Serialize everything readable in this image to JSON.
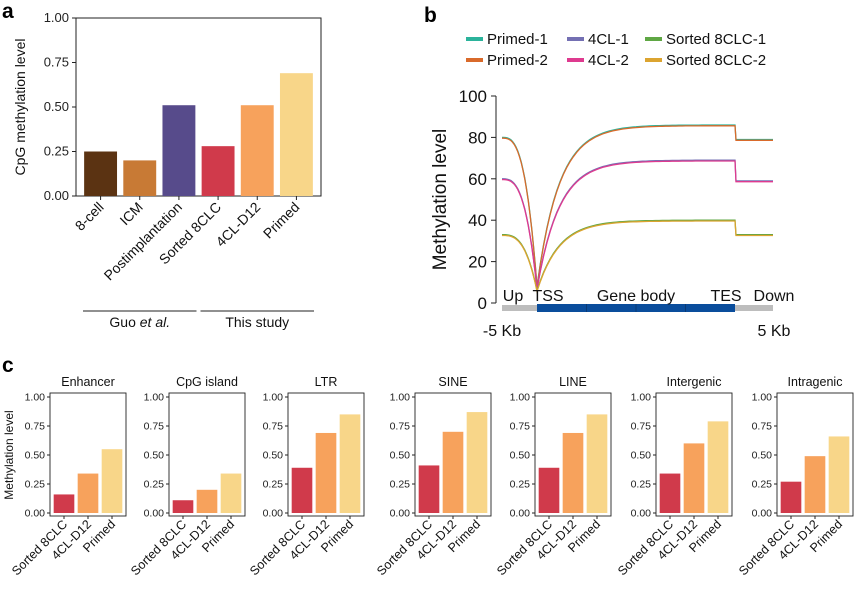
{
  "panels": {
    "a": {
      "letter": "a"
    },
    "b": {
      "letter": "b"
    },
    "c": {
      "letter": "c"
    }
  },
  "chart_data": [
    {
      "id": "a",
      "type": "bar",
      "ylabel": "CpG methylation level",
      "ylim": [
        0,
        1
      ],
      "yticks": [
        "0.00",
        "0.25",
        "0.50",
        "0.75",
        "1.00"
      ],
      "categories": [
        "8-cell",
        "ICM",
        "Postimplantation",
        "Sorted 8CLC",
        "4CL-D12",
        "Primed"
      ],
      "values": [
        0.25,
        0.2,
        0.51,
        0.28,
        0.51,
        0.69
      ],
      "colors": [
        "#5b3312",
        "#c87a35",
        "#574b8b",
        "#d03a4b",
        "#f7a25c",
        "#f8d689"
      ],
      "groups": [
        {
          "label_pre": "Guo ",
          "label_em": "et al.",
          "label_post": "",
          "span": [
            0,
            2
          ]
        },
        {
          "label_pre": "This study",
          "label_em": "",
          "label_post": "",
          "span": [
            3,
            5
          ]
        }
      ]
    },
    {
      "id": "b",
      "type": "line",
      "ylabel": "Methylation level",
      "ylim": [
        0,
        100
      ],
      "yticks": [
        "0",
        "20",
        "40",
        "60",
        "80",
        "100"
      ],
      "legend": [
        {
          "name": "Primed-1",
          "color": "#2bb39b"
        },
        {
          "name": "4CL-1",
          "color": "#7470b3"
        },
        {
          "name": "Sorted 8CLC-1",
          "color": "#5fa744"
        },
        {
          "name": "Primed-2",
          "color": "#d96a2b"
        },
        {
          "name": "4CL-2",
          "color": "#de3a8f"
        },
        {
          "name": "Sorted 8CLC-2",
          "color": "#dca430"
        }
      ],
      "region_labels": [
        "Up",
        "TSS",
        "Gene body",
        "TES",
        "Down"
      ],
      "x_end_labels": [
        "-5 Kb",
        "5 Kb"
      ],
      "profiles": [
        {
          "name": "Primed",
          "colors": [
            "#2bb39b",
            "#d96a2b"
          ],
          "up": 80,
          "tss": 8,
          "body_end": 86,
          "down": 79
        },
        {
          "name": "4CL",
          "colors": [
            "#7470b3",
            "#de3a8f"
          ],
          "up": 60,
          "tss": 7,
          "body_end": 69,
          "down": 59
        },
        {
          "name": "Sorted 8CLC",
          "colors": [
            "#5fa744",
            "#dca430"
          ],
          "up": 33,
          "tss": 6,
          "body_end": 40,
          "down": 33
        }
      ]
    },
    {
      "id": "c",
      "type": "bar",
      "ylabel": "Methylation level",
      "ylim": [
        0,
        1
      ],
      "yticks": [
        "0.00",
        "0.25",
        "0.50",
        "0.75",
        "1.00"
      ],
      "categories": [
        "Sorted 8CLC",
        "4CL-D12",
        "Primed"
      ],
      "colors": [
        "#d03a4b",
        "#f7a25c",
        "#f8d689"
      ],
      "subplots": [
        {
          "title": "Enhancer",
          "values": [
            0.16,
            0.34,
            0.55
          ]
        },
        {
          "title": "CpG island",
          "values": [
            0.11,
            0.2,
            0.34
          ]
        },
        {
          "title": "LTR",
          "values": [
            0.39,
            0.69,
            0.85
          ]
        },
        {
          "title": "SINE",
          "values": [
            0.41,
            0.7,
            0.87
          ]
        },
        {
          "title": "LINE",
          "values": [
            0.39,
            0.69,
            0.85
          ]
        },
        {
          "title": "Intergenic",
          "values": [
            0.34,
            0.6,
            0.79
          ]
        },
        {
          "title": "Intragenic",
          "values": [
            0.27,
            0.49,
            0.66
          ]
        }
      ]
    }
  ]
}
